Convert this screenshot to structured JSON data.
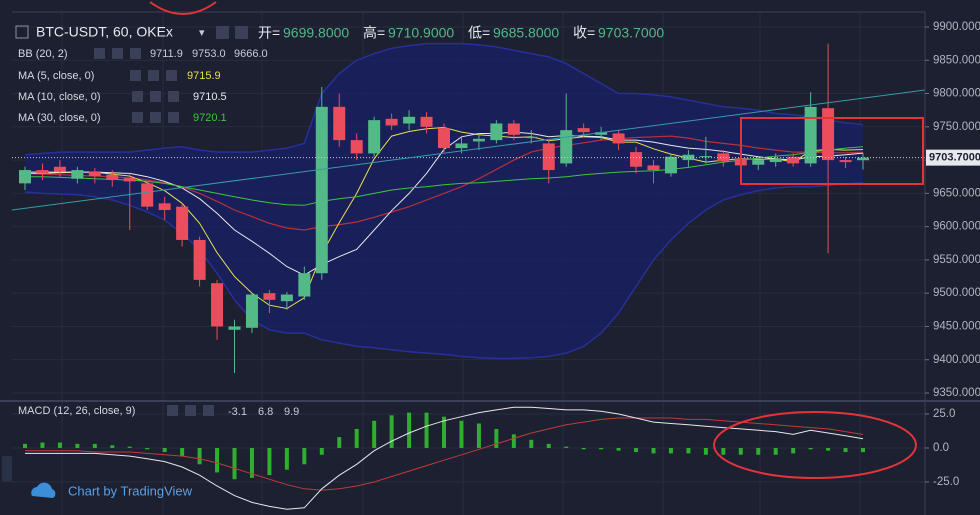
{
  "chart_data": [
    {
      "type": "candlestick",
      "title": "BTC-USDT, 60, OKEx",
      "ohlc_legend": [
        {
          "label": "开=",
          "value": "9699.8000"
        },
        {
          "label": "高=",
          "value": "9710.9000"
        },
        {
          "label": "低=",
          "value": "9685.8000"
        },
        {
          "label": "收=",
          "value": "9703.7000"
        }
      ],
      "up_color": "#53b987",
      "down_color": "#eb4d5c",
      "open": [
        9665,
        9685,
        9690,
        9672,
        9683,
        9678,
        9673,
        9665,
        9635,
        9630,
        9580,
        9515,
        9445,
        9448,
        9500,
        9488,
        9495,
        9530,
        9780,
        9730,
        9710,
        9762,
        9755,
        9765,
        9748,
        9718,
        9728,
        9730,
        9755,
        9733,
        9725,
        9695,
        9748,
        9738,
        9740,
        9712,
        9692,
        9680,
        9700,
        9705,
        9710,
        9702,
        9693,
        9697,
        9705,
        9695,
        9778,
        9700,
        9699.8
      ],
      "high": [
        9690,
        9695,
        9700,
        9690,
        9688,
        9685,
        9680,
        9668,
        9645,
        9635,
        9585,
        9520,
        9460,
        9500,
        9505,
        9502,
        9540,
        9810,
        9800,
        9740,
        9765,
        9770,
        9775,
        9772,
        9755,
        9735,
        9740,
        9760,
        9760,
        9745,
        9730,
        9800,
        9755,
        9750,
        9745,
        9720,
        9700,
        9710,
        9715,
        9735,
        9715,
        9708,
        9705,
        9710,
        9710,
        9802,
        9875,
        9705,
        9710.9
      ],
      "low": [
        9655,
        9670,
        9675,
        9665,
        9665,
        9660,
        9595,
        9625,
        9610,
        9570,
        9510,
        9430,
        9380,
        9440,
        9470,
        9475,
        9490,
        9520,
        9720,
        9700,
        9705,
        9745,
        9745,
        9740,
        9712,
        9710,
        9715,
        9725,
        9730,
        9725,
        9665,
        9690,
        9735,
        9730,
        9715,
        9680,
        9665,
        9675,
        9690,
        9695,
        9690,
        9685,
        9685,
        9690,
        9690,
        9690,
        9560,
        9688,
        9685.8
      ],
      "close": [
        9685,
        9680,
        9683,
        9685,
        9676,
        9670,
        9668,
        9630,
        9625,
        9580,
        9520,
        9450,
        9450,
        9498,
        9490,
        9498,
        9530,
        9780,
        9730,
        9710,
        9760,
        9752,
        9765,
        9750,
        9718,
        9725,
        9732,
        9755,
        9738,
        9735,
        9685,
        9745,
        9742,
        9742,
        9725,
        9690,
        9685,
        9705,
        9708,
        9706,
        9698,
        9692,
        9700,
        9702,
        9695,
        9780,
        9700,
        9697,
        9703.7
      ],
      "bands": {
        "name": "BB (20, 2)",
        "basis_color": "#b8303c",
        "band_color": "#27309a",
        "fill_color": "#18206a",
        "labels": [
          "9711.9",
          "9753.0",
          "9666.0"
        ],
        "basis": [
          9680,
          9679,
          9678,
          9677,
          9676,
          9675,
          9673,
          9670,
          9666,
          9660,
          9650,
          9638,
          9625,
          9615,
          9605,
          9598,
          9595,
          9600,
          9603,
          9607,
          9614,
          9622,
          9630,
          9640,
          9650,
          9660,
          9672,
          9686,
          9700,
          9712,
          9718,
          9722,
          9726,
          9730,
          9732,
          9734,
          9735,
          9736,
          9733,
          9728,
          9725,
          9722,
          9718,
          9715,
          9712,
          9712,
          9711,
          9711,
          9711.9
        ],
        "upper": [
          9708,
          9710,
          9712,
          9712,
          9712,
          9712,
          9712,
          9715,
          9718,
          9720,
          9715,
          9712,
          9712,
          9712,
          9715,
          9718,
          9725,
          9800,
          9830,
          9850,
          9860,
          9868,
          9872,
          9875,
          9875,
          9875,
          9873,
          9870,
          9865,
          9860,
          9855,
          9845,
          9830,
          9815,
          9800,
          9800,
          9798,
          9795,
          9790,
          9785,
          9780,
          9778,
          9775,
          9770,
          9768,
          9765,
          9760,
          9756,
          9753
        ],
        "lower": [
          9652,
          9650,
          9649,
          9648,
          9645,
          9640,
          9632,
          9622,
          9610,
          9590,
          9565,
          9530,
          9490,
          9460,
          9445,
          9440,
          9440,
          9430,
          9425,
          9420,
          9418,
          9415,
          9412,
          9410,
          9408,
          9405,
          9403,
          9402,
          9402,
          9403,
          9405,
          9410,
          9420,
          9440,
          9470,
          9510,
          9550,
          9580,
          9605,
          9625,
          9640,
          9648,
          9654,
          9658,
          9660,
          9660,
          9662,
          9664,
          9666
        ]
      },
      "overlays": [
        {
          "name": "MA (5, close, 0)",
          "color": "#e8e04a",
          "label": "9715.9",
          "values": [
            9680,
            9680,
            9681,
            9682,
            9682,
            9679,
            9676,
            9666,
            9654,
            9635,
            9605,
            9561,
            9525,
            9500,
            9482,
            9477,
            9493,
            9559,
            9606,
            9650,
            9702,
            9736,
            9743,
            9747,
            9749,
            9742,
            9738,
            9736,
            9734,
            9735,
            9729,
            9732,
            9735,
            9734,
            9727,
            9727,
            9717,
            9709,
            9703,
            9697,
            9700,
            9702,
            9701,
            9702,
            9697,
            9714,
            9716,
            9715,
            9715.9
          ]
        },
        {
          "name": "MA (10, close, 0)",
          "color": "#e8e8ee",
          "label": "9710.5",
          "values": [
            9682,
            9682,
            9682,
            9682,
            9682,
            9681,
            9680,
            9675,
            9668,
            9658,
            9642,
            9620,
            9595,
            9578,
            9560,
            9540,
            9527,
            9543,
            9555,
            9566,
            9595,
            9624,
            9650,
            9680,
            9716,
            9735,
            9740,
            9740,
            9742,
            9740,
            9735,
            9737,
            9736,
            9735,
            9730,
            9730,
            9727,
            9722,
            9718,
            9716,
            9713,
            9709,
            9705,
            9702,
            9700,
            9705,
            9706,
            9708,
            9710.5
          ]
        },
        {
          "name": "MA (30, close, 0)",
          "color": "#3cc63c",
          "label": "9720.1",
          "values": [
            9675,
            9675,
            9674,
            9673,
            9672,
            9671,
            9670,
            9668,
            9665,
            9660,
            9655,
            9650,
            9645,
            9640,
            9636,
            9633,
            9632,
            9638,
            9642,
            9645,
            9650,
            9655,
            9658,
            9660,
            9663,
            9665,
            9666,
            9668,
            9670,
            9672,
            9673,
            9675,
            9678,
            9680,
            9682,
            9683,
            9684,
            9686,
            9689,
            9693,
            9697,
            9700,
            9703,
            9706,
            9708,
            9712,
            9715,
            9718,
            9720.1
          ]
        }
      ],
      "last_price": {
        "value": 9703.7,
        "label": "9703.7000"
      },
      "ylim": [
        9339.5,
        9922.5
      ],
      "yticks": [
        {
          "value": 9350,
          "label": "9350.000"
        },
        {
          "value": 9400,
          "label": "9400.000"
        },
        {
          "value": 9450,
          "label": "9450.000"
        },
        {
          "value": 9500,
          "label": "9500.000"
        },
        {
          "value": 9550,
          "label": "9550.000"
        },
        {
          "value": 9600,
          "label": "9600.000"
        },
        {
          "value": 9650,
          "label": "9650.000"
        },
        {
          "value": 9700,
          "label": "9700.000"
        },
        {
          "value": 9750,
          "label": "9750.000"
        },
        {
          "value": 9800,
          "label": "9800.000"
        },
        {
          "value": 9850,
          "label": "9850.000"
        },
        {
          "value": 9900,
          "label": "9900.000"
        }
      ],
      "grid": true
    },
    {
      "type": "macd",
      "title": "MACD (12, 26, close, 9)",
      "labels": [
        "-3.1",
        "6.8",
        "9.9"
      ],
      "hist_color": "#2fae2f",
      "macd_color": "#e8e8ee",
      "signal_color": "#c23a3a",
      "histogram": [
        3,
        4,
        4,
        3,
        3,
        2,
        1,
        -1,
        -3,
        -6,
        -12,
        -18,
        -23,
        -22,
        -20,
        -16,
        -12,
        -5,
        8,
        14,
        20,
        24,
        26,
        26,
        23,
        20,
        18,
        14,
        10,
        6,
        3,
        1,
        -1,
        -1,
        -2,
        -3,
        -4,
        -4,
        -4,
        -5,
        -5,
        -5,
        -5,
        -5,
        -4,
        -1,
        -2,
        -3,
        -3.1
      ],
      "macd": [
        -4,
        -4,
        -4,
        -4,
        -4,
        -5,
        -6,
        -8,
        -10,
        -14,
        -20,
        -28,
        -35,
        -40,
        -43,
        -45,
        -44,
        -30,
        -20,
        -12,
        -2,
        5,
        11,
        16,
        20,
        23,
        26,
        28,
        30,
        30,
        29,
        28,
        28,
        27,
        25,
        22,
        19,
        18,
        17,
        16,
        15,
        14,
        13,
        12,
        10,
        13,
        11,
        9,
        6.8
      ],
      "signal": [
        -2,
        -2,
        -2,
        -2,
        -3,
        -3,
        -3,
        -4,
        -5,
        -6,
        -8,
        -11,
        -15,
        -19,
        -23,
        -27,
        -30,
        -31,
        -30,
        -28,
        -25,
        -21,
        -17,
        -13,
        -9,
        -5,
        -1,
        3,
        7,
        11,
        14,
        17,
        19,
        21,
        22,
        22,
        22,
        22,
        21,
        21,
        20,
        19,
        18,
        17,
        16,
        15,
        14,
        12,
        9.9
      ],
      "ylim": [
        -49.3,
        33.8
      ],
      "yticks": [
        {
          "value": 25,
          "label": "25.0"
        },
        {
          "value": 0,
          "label": "0.0"
        },
        {
          "value": -25,
          "label": "-25.0"
        }
      ],
      "grid": true
    }
  ],
  "footer": "Chart by TradingView"
}
